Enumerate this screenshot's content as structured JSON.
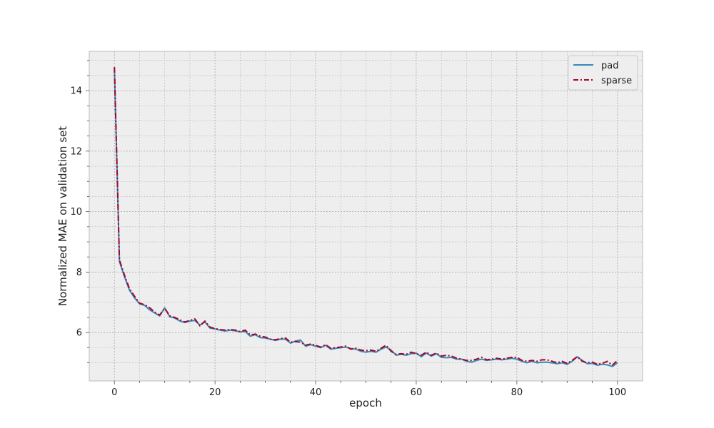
{
  "chart_data": {
    "type": "line",
    "title": "",
    "xlabel": "epoch",
    "ylabel": "Normalized MAE on validation set",
    "xlim": [
      -5,
      105
    ],
    "ylim": [
      4.4,
      15.3
    ],
    "xticks": [
      0,
      20,
      40,
      60,
      80,
      100
    ],
    "yticks": [
      6,
      8,
      10,
      12,
      14
    ],
    "grid": true,
    "legend_position": "top-right",
    "x": [
      0,
      1,
      2,
      3,
      4,
      5,
      6,
      7,
      8,
      9,
      10,
      11,
      12,
      13,
      14,
      15,
      16,
      17,
      18,
      19,
      20,
      21,
      22,
      23,
      24,
      25,
      26,
      27,
      28,
      29,
      30,
      31,
      32,
      33,
      34,
      35,
      36,
      37,
      38,
      39,
      40,
      41,
      42,
      43,
      44,
      45,
      46,
      47,
      48,
      49,
      50,
      51,
      52,
      53,
      54,
      55,
      56,
      57,
      58,
      59,
      60,
      61,
      62,
      63,
      64,
      65,
      66,
      67,
      68,
      69,
      70,
      71,
      72,
      73,
      74,
      75,
      76,
      77,
      78,
      79,
      80,
      81,
      82,
      83,
      84,
      85,
      86,
      87,
      88,
      89,
      90,
      91,
      92,
      93,
      94,
      95,
      96,
      97,
      98,
      99,
      100
    ],
    "series": [
      {
        "name": "pad",
        "color": "#348abd",
        "dash": "solid",
        "values": [
          14.75,
          8.35,
          7.85,
          7.4,
          7.15,
          6.95,
          6.9,
          6.75,
          6.65,
          6.55,
          6.82,
          6.52,
          6.48,
          6.38,
          6.33,
          6.38,
          6.4,
          6.25,
          6.35,
          6.15,
          6.12,
          6.08,
          6.05,
          6.08,
          6.06,
          6.02,
          6.04,
          5.88,
          5.93,
          5.83,
          5.82,
          5.78,
          5.74,
          5.78,
          5.78,
          5.65,
          5.72,
          5.75,
          5.55,
          5.6,
          5.55,
          5.5,
          5.58,
          5.45,
          5.48,
          5.5,
          5.52,
          5.47,
          5.45,
          5.38,
          5.35,
          5.38,
          5.35,
          5.45,
          5.52,
          5.42,
          5.25,
          5.28,
          5.25,
          5.3,
          5.32,
          5.2,
          5.32,
          5.22,
          5.3,
          5.18,
          5.17,
          5.18,
          5.12,
          5.12,
          5.05,
          5.02,
          5.08,
          5.12,
          5.08,
          5.1,
          5.12,
          5.1,
          5.12,
          5.15,
          5.12,
          5.05,
          5.0,
          5.05,
          5.0,
          5.02,
          5.02,
          5.0,
          4.97,
          5.0,
          4.95,
          5.05,
          5.2,
          5.08,
          4.97,
          4.98,
          4.92,
          4.95,
          4.93,
          4.88,
          5.0
        ]
      },
      {
        "name": "sparse",
        "color": "#a60628",
        "dash": "dashdot",
        "values": [
          14.78,
          8.4,
          7.9,
          7.45,
          7.2,
          6.97,
          6.92,
          6.82,
          6.68,
          6.58,
          6.8,
          6.55,
          6.5,
          6.42,
          6.35,
          6.4,
          6.45,
          6.22,
          6.38,
          6.18,
          6.13,
          6.1,
          6.08,
          6.1,
          6.08,
          6.03,
          6.08,
          5.92,
          5.95,
          5.88,
          5.85,
          5.78,
          5.76,
          5.8,
          5.82,
          5.68,
          5.7,
          5.68,
          5.58,
          5.62,
          5.58,
          5.52,
          5.6,
          5.48,
          5.5,
          5.52,
          5.55,
          5.45,
          5.48,
          5.42,
          5.4,
          5.42,
          5.38,
          5.48,
          5.58,
          5.38,
          5.28,
          5.3,
          5.28,
          5.35,
          5.3,
          5.25,
          5.35,
          5.25,
          5.32,
          5.22,
          5.25,
          5.22,
          5.15,
          5.12,
          5.08,
          5.08,
          5.12,
          5.18,
          5.1,
          5.12,
          5.15,
          5.12,
          5.15,
          5.18,
          5.18,
          5.08,
          5.05,
          5.08,
          5.05,
          5.1,
          5.1,
          5.05,
          5.0,
          5.05,
          4.98,
          5.08,
          5.2,
          5.05,
          5.0,
          5.02,
          4.95,
          4.98,
          5.05,
          4.92,
          5.08
        ]
      }
    ]
  }
}
